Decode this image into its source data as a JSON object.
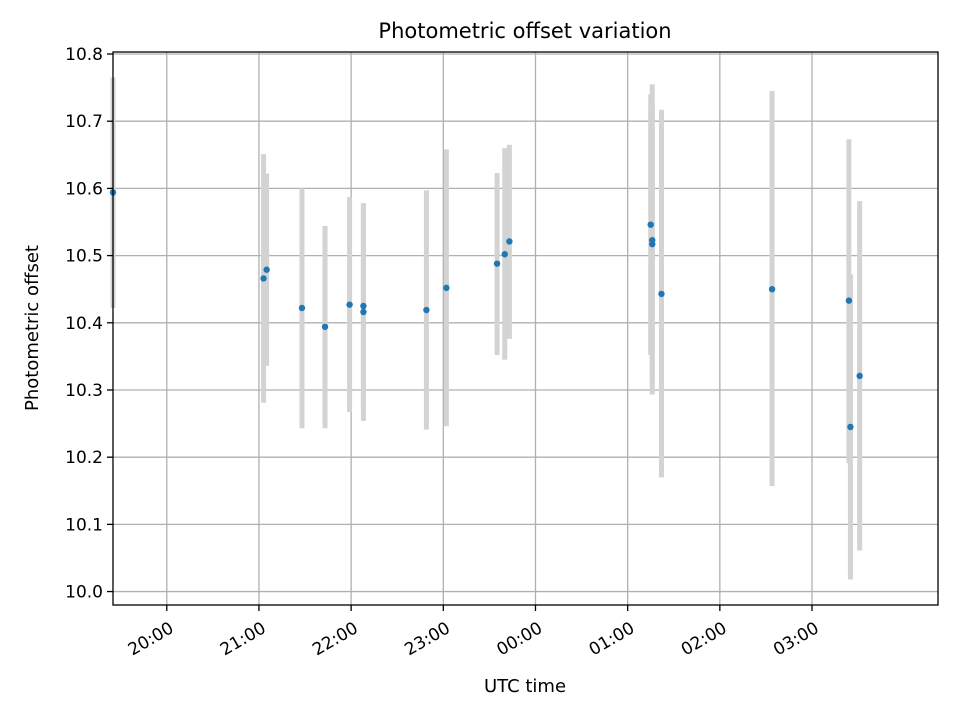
{
  "chart_data": {
    "type": "scatter",
    "title": "Photometric offset variation",
    "xlabel": "UTC time",
    "ylabel": "Photometric offset",
    "xlim": [
      "19:25",
      "04:22"
    ],
    "ylim": [
      9.98,
      10.803
    ],
    "x_ticks": [
      "20:00",
      "21:00",
      "22:00",
      "23:00",
      "00:00",
      "01:00",
      "02:00",
      "03:00"
    ],
    "y_ticks": [
      "10.0",
      "10.1",
      "10.2",
      "10.3",
      "10.4",
      "10.5",
      "10.6",
      "10.7",
      "10.8"
    ],
    "grid": true,
    "point_color": "#1f77b4",
    "errorbar_color": "#d3d3d3",
    "points": [
      {
        "time": "19:25",
        "y": 10.594,
        "ylo": 10.422,
        "yhi": 10.765
      },
      {
        "time": "21:03",
        "y": 10.466,
        "ylo": 10.281,
        "yhi": 10.651
      },
      {
        "time": "21:05",
        "y": 10.479,
        "ylo": 10.336,
        "yhi": 10.622
      },
      {
        "time": "21:28",
        "y": 10.422,
        "ylo": 10.243,
        "yhi": 10.6
      },
      {
        "time": "21:43",
        "y": 10.394,
        "ylo": 10.243,
        "yhi": 10.544
      },
      {
        "time": "21:59",
        "y": 10.427,
        "ylo": 10.267,
        "yhi": 10.587
      },
      {
        "time": "22:08",
        "y": 10.425,
        "ylo": 10.273,
        "yhi": 10.577
      },
      {
        "time": "22:08",
        "y": 10.416,
        "ylo": 10.254,
        "yhi": 10.578
      },
      {
        "time": "22:49",
        "y": 10.419,
        "ylo": 10.241,
        "yhi": 10.597
      },
      {
        "time": "23:02",
        "y": 10.452,
        "ylo": 10.246,
        "yhi": 10.658
      },
      {
        "time": "23:35",
        "y": 10.488,
        "ylo": 10.352,
        "yhi": 10.623
      },
      {
        "time": "23:40",
        "y": 10.502,
        "ylo": 10.345,
        "yhi": 10.66
      },
      {
        "time": "23:43",
        "y": 10.521,
        "ylo": 10.376,
        "yhi": 10.665
      },
      {
        "time": "01:15",
        "y": 10.546,
        "ylo": 10.352,
        "yhi": 10.74
      },
      {
        "time": "01:16",
        "y": 10.523,
        "ylo": 10.293,
        "yhi": 10.755
      },
      {
        "time": "01:16",
        "y": 10.517,
        "ylo": 10.311,
        "yhi": 10.722
      },
      {
        "time": "01:22",
        "y": 10.443,
        "ylo": 10.17,
        "yhi": 10.717
      },
      {
        "time": "02:34",
        "y": 10.45,
        "ylo": 10.157,
        "yhi": 10.745
      },
      {
        "time": "03:24",
        "y": 10.433,
        "ylo": 10.191,
        "yhi": 10.673
      },
      {
        "time": "03:25",
        "y": 10.245,
        "ylo": 10.018,
        "yhi": 10.472
      },
      {
        "time": "03:31",
        "y": 10.321,
        "ylo": 10.061,
        "yhi": 10.581
      }
    ]
  }
}
